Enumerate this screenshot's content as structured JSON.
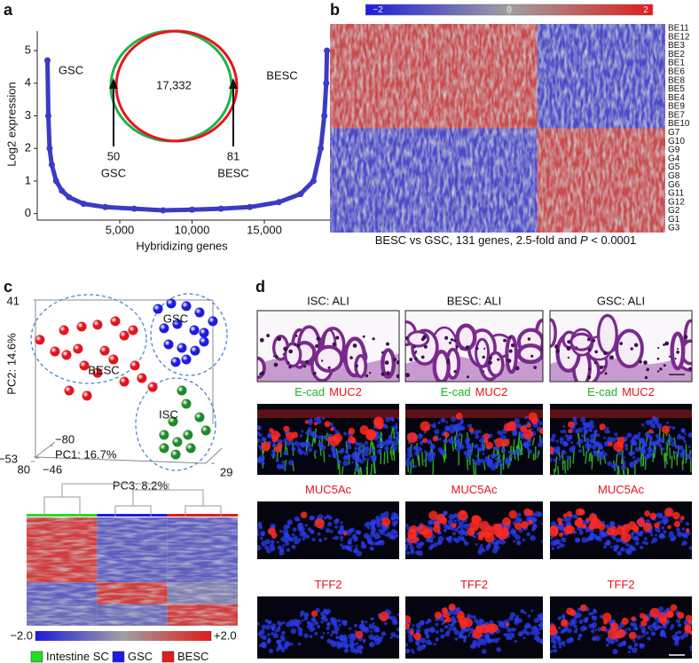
{
  "panel_labels": [
    "a",
    "b",
    "c",
    "d"
  ],
  "chart_data": [
    {
      "type": "line",
      "ylabel": "Log2 expression",
      "xlabel": "Hybridizing genes",
      "x": [
        0,
        60,
        150,
        300,
        600,
        1000,
        1500,
        2500,
        4000,
        6000,
        8000,
        10000,
        12000,
        14000,
        16000,
        17500,
        18400,
        18900,
        19150,
        19280,
        19330
      ],
      "values": [
        4.7,
        3.0,
        2.0,
        1.5,
        1.0,
        0.7,
        0.5,
        0.3,
        0.2,
        0.15,
        0.1,
        0.12,
        0.15,
        0.2,
        0.35,
        0.6,
        1.0,
        2.0,
        3.0,
        4.0,
        5.0
      ],
      "color": "#3b3bc4",
      "xlim": [
        -705,
        19540
      ],
      "ylim": [
        -0.2,
        5.6
      ],
      "xticks": [
        {
          "value": 5000,
          "label": "5,000"
        },
        {
          "value": 10000,
          "label": "10,000"
        },
        {
          "value": 15000,
          "label": "15,000"
        }
      ],
      "yticks": [
        0,
        1,
        2,
        3,
        4,
        5
      ],
      "annotations": {
        "left_label": "GSC",
        "right_label": "BESC",
        "overlap": "17,332",
        "left_count": "50",
        "left_count_label": "GSC",
        "right_count": "81",
        "right_count_label": "BESC"
      },
      "venn_colors": [
        "#22b14c",
        "#e8141e"
      ]
    },
    {
      "type": "heatmap",
      "caption": [
        "BESC vs GSC, 131 genes, 2.5-fold and ",
        "P",
        " < 0.0001"
      ],
      "rows": [
        "BE11",
        "BE12",
        "BE3",
        "BE2",
        "BE1",
        "BE6",
        "BE8",
        "BE5",
        "BE4",
        "BE9",
        "BE7",
        "BE10",
        "G7",
        "G10",
        "G9",
        "G4",
        "G5",
        "G8",
        "G6",
        "G11",
        "G12",
        "G2",
        "G1",
        "G3"
      ],
      "row_groups": [
        12,
        12
      ],
      "column_groups": [
        81,
        50
      ],
      "values": [
        [
          1.3,
          -1.3
        ],
        [
          -1.3,
          1.3
        ]
      ],
      "colormap": [
        "#1c1ce0",
        "#a0a0a0",
        "#e01c1c"
      ],
      "zlim": [
        -2,
        2
      ],
      "zticks": [
        {
          "value": -2,
          "label": "−2"
        },
        0,
        2
      ]
    },
    {
      "type": "scatter",
      "axes": {
        "pc2": {
          "label": "PC2: 14.6%",
          "ends": [
            {
              "value": -53,
              "label": "−53"
            },
            {
              "value": 41,
              "label": "41"
            }
          ]
        },
        "pc1": {
          "label": "PC1: 16.7%",
          "ends": [
            {
              "value": -80,
              "label": "−80"
            },
            {
              "value": 80,
              "label": "80"
            }
          ]
        },
        "pc3": {
          "label": "PC3: 8.2%",
          "ends": [
            {
              "value": -46,
              "label": "−46"
            },
            {
              "value": 29,
              "label": "29"
            }
          ]
        }
      },
      "xlim": [
        0,
        100
      ],
      "ylim": [
        0,
        100
      ],
      "series": [
        {
          "name": "BESC",
          "color": "#e3141c",
          "x": [
            4.3,
            11.7,
            17.4,
            23.0,
            26.1,
            32.6,
            36.1,
            40.4,
            45.7,
            50.9,
            16.1,
            24.8,
            32.6,
            41.3,
            50.0,
            18.7,
            27.4,
            54.3,
            59.6,
            45.7
          ],
          "values": [
            74.8,
            68.6,
            66.7,
            70.0,
            61.0,
            57.1,
            69.0,
            64.3,
            52.4,
            61.0,
            80.0,
            81.9,
            82.9,
            84.8,
            80.0,
            47.6,
            44.8,
            54.3,
            49.5,
            77.1
          ]
        },
        {
          "name": "GSC",
          "color": "#1c1ce0",
          "x": [
            62.2,
            68.7,
            76.1,
            82.6,
            89.1,
            65.2,
            71.7,
            80.0,
            84.8,
            67.4,
            73.9,
            80.4,
            76.1,
            70.9,
            84.8
          ],
          "values": [
            91.4,
            94.3,
            92.9,
            89.5,
            84.8,
            81.0,
            83.3,
            80.0,
            78.6,
            72.4,
            70.5,
            69.0,
            64.3,
            62.9,
            73.8
          ]
        },
        {
          "name": "ISC",
          "color": "#1f8a2a",
          "x": [
            73.9,
            76.1,
            82.6,
            69.6,
            65.2,
            71.7,
            76.9,
            65.2,
            70.9,
            78.3,
            85.7
          ],
          "values": [
            47.6,
            40.5,
            33.3,
            31.0,
            23.8,
            20.0,
            23.8,
            16.7,
            13.3,
            16.7,
            26.2
          ]
        }
      ]
    },
    {
      "type": "heatmap",
      "legend": [
        {
          "name": "Intestine SC",
          "color": "#22dd22"
        },
        {
          "name": "GSC",
          "color": "#1c1ce0"
        },
        {
          "name": "BESC",
          "color": "#e01c1c"
        }
      ],
      "row_shares": [
        60,
        20,
        20
      ],
      "column_groups": [
        2,
        2,
        2
      ],
      "values": [
        [
          1.5,
          -1.0,
          -1.0
        ],
        [
          -1.0,
          1.5,
          -0.5
        ],
        [
          -0.8,
          -0.8,
          1.5
        ]
      ],
      "colormap": [
        "#1c1ce0",
        "#a0a0a0",
        "#e01c1c"
      ],
      "zlim": [
        -2,
        2
      ],
      "zticks": [
        {
          "value": -2,
          "label": "−2.0"
        },
        {
          "value": 2,
          "label": "+2.0"
        }
      ]
    }
  ],
  "microscopy": {
    "columns": [
      "ISC: ALI",
      "BESC: ALI",
      "GSC: ALI"
    ],
    "stain_rows": [
      [
        {
          "text": "E-cad",
          "color": "#1db31d"
        },
        {
          "text": "MUC2",
          "color": "#e8141e"
        }
      ],
      [
        {
          "text": "MUC5Ac",
          "color": "#e8141e"
        }
      ],
      [
        {
          "text": "TFF2",
          "color": "#e8141e"
        }
      ]
    ]
  }
}
